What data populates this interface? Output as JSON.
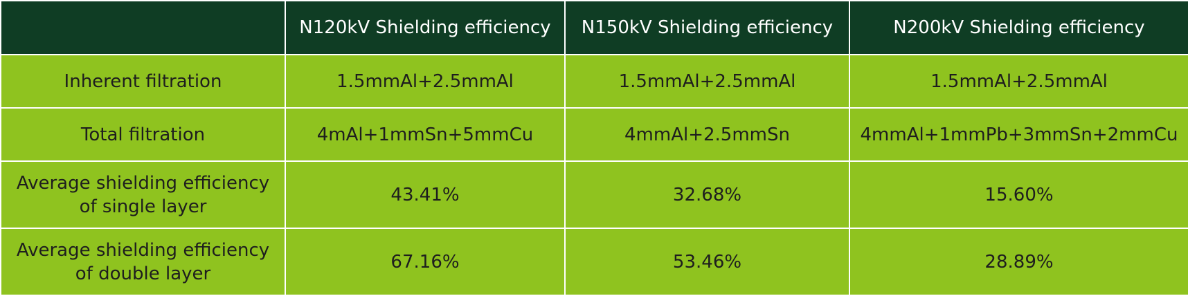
{
  "table": {
    "headers": [
      "",
      "N120kV Shielding efficiency",
      "N150kV Shielding efficiency",
      "N200kV Shielding efficiency"
    ],
    "rows": [
      {
        "label_lines": [
          "Inherent filtration"
        ],
        "cells": [
          "1.5mmAl+2.5mmAl",
          "1.5mmAl+2.5mmAl",
          "1.5mmAl+2.5mmAl"
        ]
      },
      {
        "label_lines": [
          "Total filtration"
        ],
        "cells": [
          "4mAl+1mmSn+5mmCu",
          "4mmAl+2.5mmSn",
          "4mmAl+1mmPb+3mmSn+2mmCu"
        ]
      },
      {
        "label_lines": [
          "Average shielding efficiency",
          "of single layer"
        ],
        "cells": [
          "43.41%",
          "32.68%",
          "15.60%"
        ]
      },
      {
        "label_lines": [
          "Average shielding efficiency",
          "of double layer"
        ],
        "cells": [
          "67.16%",
          "53.46%",
          "28.89%"
        ]
      }
    ]
  },
  "colors": {
    "header_bg": "#0f3d24",
    "body_bg": "#8fc31f",
    "grid_line": "#ffffff"
  }
}
